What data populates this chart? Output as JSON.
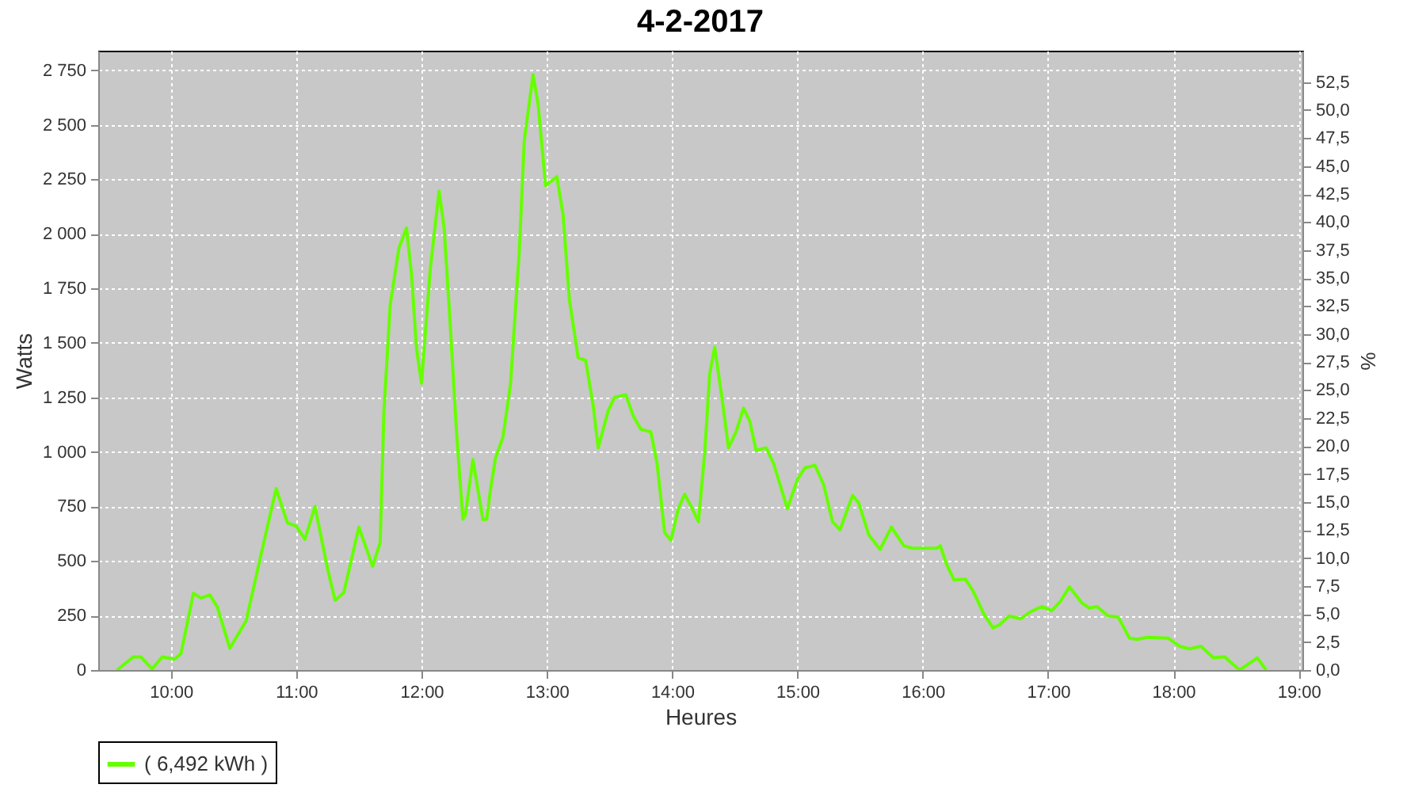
{
  "chart_data": {
    "type": "line",
    "title": "4-2-2017",
    "xlabel": "Heures",
    "ylabel": "Watts",
    "y2label": "%",
    "xlim": [
      9.42,
      19.03
    ],
    "xticks": [
      {
        "value": 10,
        "label": "10:00"
      },
      {
        "value": 11,
        "label": "11:00"
      },
      {
        "value": 12,
        "label": "12:00"
      },
      {
        "value": 13,
        "label": "13:00"
      },
      {
        "value": 14,
        "label": "14:00"
      },
      {
        "value": 15,
        "label": "15:00"
      },
      {
        "value": 16,
        "label": "16:00"
      },
      {
        "value": 17,
        "label": "17:00"
      },
      {
        "value": 18,
        "label": "18:00"
      },
      {
        "value": 19,
        "label": "19:00"
      }
    ],
    "ylim": [
      0,
      2840
    ],
    "yticks": [
      0,
      250,
      500,
      750,
      {
        "value": 1000,
        "label": "1 000"
      },
      {
        "value": 1250,
        "label": "1 250"
      },
      {
        "value": 1500,
        "label": "1 500"
      },
      {
        "value": 1750,
        "label": "1 750"
      },
      {
        "value": 2000,
        "label": "2 000"
      },
      {
        "value": 2250,
        "label": "2 250"
      },
      {
        "value": 2500,
        "label": "2 500"
      },
      {
        "value": 2750,
        "label": "2 750"
      }
    ],
    "y2lim": [
      0,
      55.3
    ],
    "y2ticks": [
      {
        "value": 0,
        "label": "0,0"
      },
      {
        "value": 2.5,
        "label": "2,5"
      },
      {
        "value": 5,
        "label": "5,0"
      },
      {
        "value": 7.5,
        "label": "7,5"
      },
      {
        "value": 10,
        "label": "10,0"
      },
      {
        "value": 12.5,
        "label": "12,5"
      },
      {
        "value": 15,
        "label": "15,0"
      },
      {
        "value": 17.5,
        "label": "17,5"
      },
      {
        "value": 20,
        "label": "20,0"
      },
      {
        "value": 22.5,
        "label": "22,5"
      },
      {
        "value": 25,
        "label": "25,0"
      },
      {
        "value": 27.5,
        "label": "27,5"
      },
      {
        "value": 30,
        "label": "30,0"
      },
      {
        "value": 32.5,
        "label": "32,5"
      },
      {
        "value": 35,
        "label": "35,0"
      },
      {
        "value": 37.5,
        "label": "37,5"
      },
      {
        "value": 40,
        "label": "40,0"
      },
      {
        "value": 42.5,
        "label": "42,5"
      },
      {
        "value": 45,
        "label": "45,0"
      },
      {
        "value": 47.5,
        "label": "47,5"
      },
      {
        "value": 50,
        "label": "50,0"
      },
      {
        "value": 52.5,
        "label": "52,5"
      }
    ],
    "grid": true,
    "legend": "bottom",
    "marker": "none",
    "line_style": "solid",
    "series": [
      {
        "name": "( 6,492 kWh )",
        "color": "#66ff00",
        "x": [
          9.57,
          9.7,
          9.76,
          9.85,
          9.93,
          10.03,
          10.08,
          10.18,
          10.24,
          10.31,
          10.37,
          10.47,
          10.6,
          10.75,
          10.84,
          10.93,
          11.0,
          11.07,
          11.15,
          11.25,
          11.31,
          11.38,
          11.5,
          11.61,
          11.67,
          11.7,
          11.75,
          11.82,
          11.88,
          11.92,
          11.96,
          12.0,
          12.07,
          12.14,
          12.18,
          12.22,
          12.28,
          12.33,
          12.35,
          12.41,
          12.49,
          12.52,
          12.55,
          12.59,
          12.65,
          12.71,
          12.78,
          12.82,
          12.89,
          12.93,
          12.99,
          13.08,
          13.13,
          13.18,
          13.25,
          13.31,
          13.37,
          13.41,
          13.49,
          13.54,
          13.63,
          13.69,
          13.75,
          13.83,
          13.88,
          13.94,
          13.99,
          14.05,
          14.1,
          14.15,
          14.21,
          14.26,
          14.3,
          14.34,
          14.4,
          14.45,
          14.51,
          14.57,
          14.62,
          14.67,
          14.75,
          14.81,
          14.92,
          15.0,
          15.06,
          15.14,
          15.21,
          15.28,
          15.34,
          15.44,
          15.49,
          15.57,
          15.66,
          15.75,
          15.85,
          15.92,
          16.11,
          16.14,
          16.19,
          16.25,
          16.34,
          16.4,
          16.49,
          16.56,
          16.61,
          16.69,
          16.78,
          16.86,
          16.95,
          17.03,
          17.1,
          17.17,
          17.27,
          17.33,
          17.39,
          17.48,
          17.56,
          17.65,
          17.71,
          17.79,
          17.96,
          18.05,
          18.13,
          18.22,
          18.32,
          18.41,
          18.47,
          18.53,
          18.62,
          18.67,
          18.74
        ],
        "values": [
          0,
          60,
          60,
          5,
          60,
          50,
          75,
          352,
          330,
          345,
          290,
          100,
          225,
          607,
          832,
          675,
          660,
          600,
          750,
          465,
          320,
          355,
          655,
          475,
          585,
          1185,
          1675,
          1935,
          2027,
          1815,
          1475,
          1315,
          1840,
          2196,
          2030,
          1670,
          1085,
          692,
          710,
          965,
          690,
          692,
          825,
          970,
          1068,
          1310,
          1917,
          2427,
          2730,
          2597,
          2221,
          2262,
          2087,
          1699,
          1432,
          1420,
          1213,
          1019,
          1189,
          1250,
          1262,
          1165,
          1104,
          1092,
          947,
          631,
          595,
          740,
          806,
          752,
          680,
          995,
          1359,
          1480,
          1238,
          1019,
          1092,
          1201,
          1141,
          1007,
          1019,
          947,
          740,
          874,
          927,
          939,
          849,
          680,
          643,
          801,
          765,
          619,
          553,
          655,
          570,
          558,
          558,
          570,
          485,
          413,
          417,
          364,
          255,
          194,
          206,
          248,
          235,
          267,
          291,
          272,
          316,
          381,
          308,
          284,
          291,
          248,
          243,
          146,
          141,
          150,
          146,
          109,
          97,
          109,
          56,
          61,
          29,
          0,
          36,
          56,
          0
        ]
      }
    ]
  }
}
